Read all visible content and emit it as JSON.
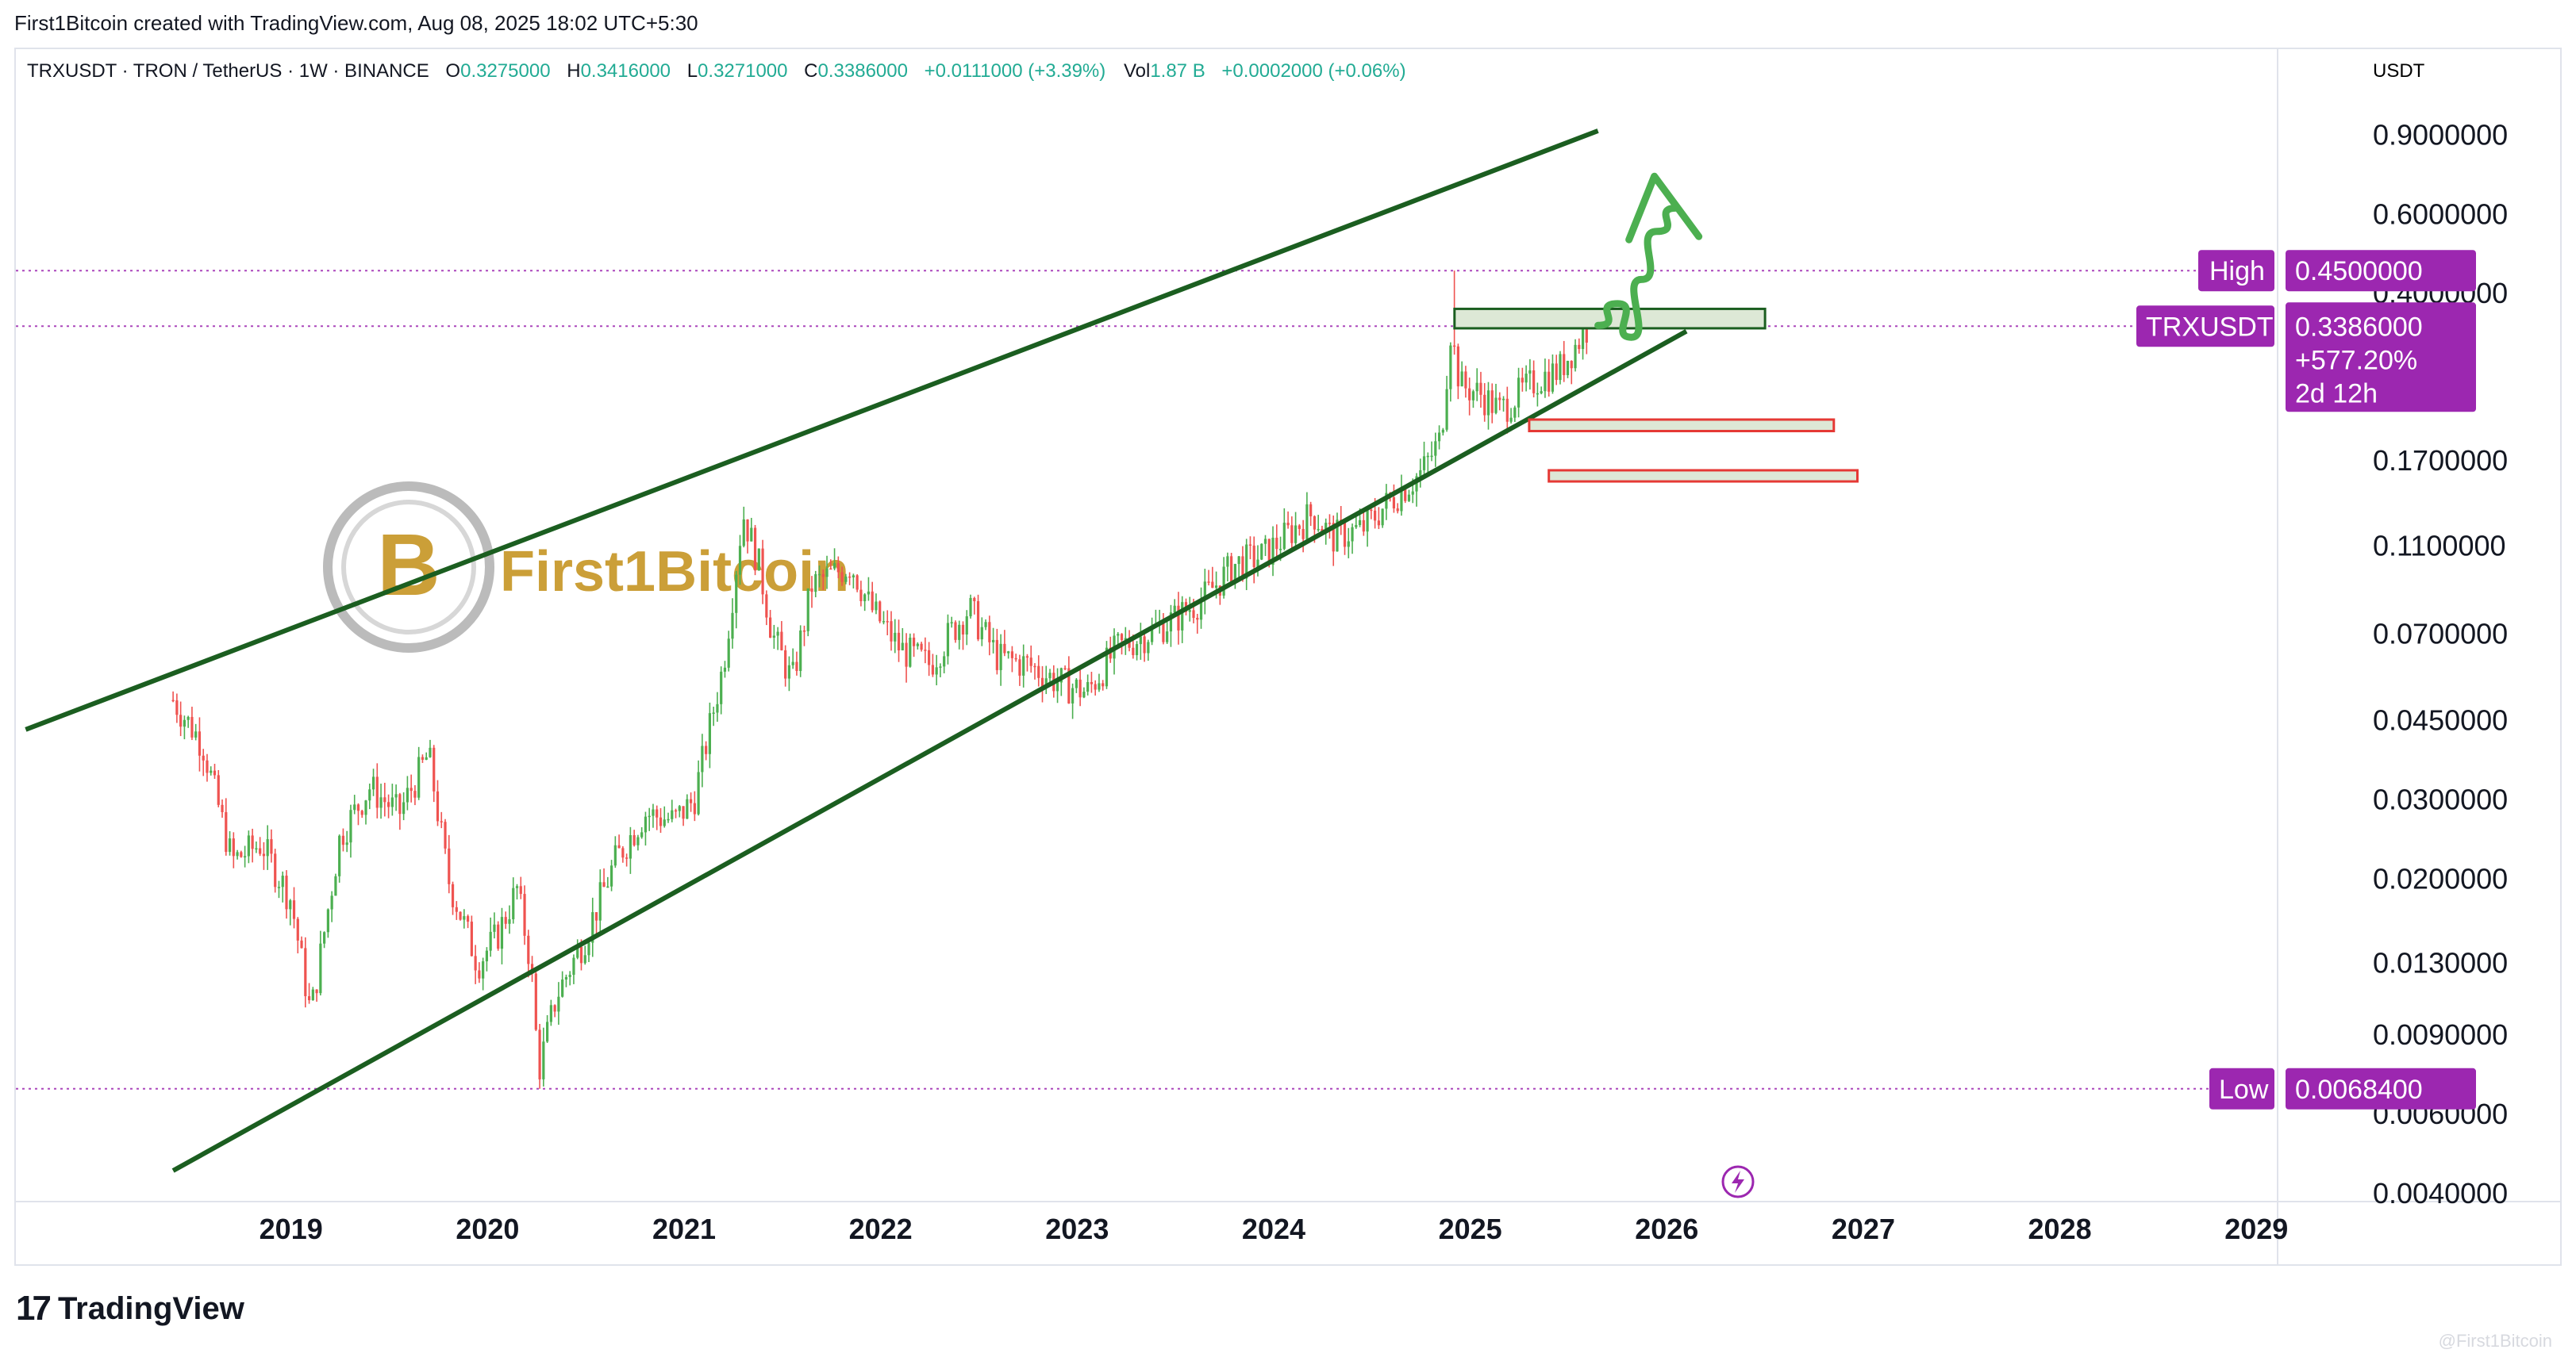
{
  "caption": "First1Bitcoin created with TradingView.com, Aug 08, 2025 18:02 UTC+5:30",
  "header": {
    "symbol": "TRXUSDT · TRON / TetherUS · 1W · BINANCE",
    "o_label": "O",
    "o_value": "0.3275000",
    "h_label": "H",
    "h_value": "0.3416000",
    "l_label": "L",
    "l_value": "0.3271000",
    "c_label": "C",
    "c_value": "0.3386000",
    "change": "+0.0111000 (+3.39%)",
    "vol_label": "Vol",
    "vol_value": "1.87 B",
    "vol_change": "+0.0002000 (+0.06%)"
  },
  "watermark": {
    "text": "First1Bitcoin",
    "small": "@First1Bitcoin"
  },
  "tradingview_logo": {
    "mark": "17",
    "name": "TradingView"
  },
  "price_axis": {
    "currency": "USDT",
    "high_tag": {
      "label": "High",
      "value": "0.4500000"
    },
    "price_tag": {
      "label": "TRXUSDT",
      "value": "0.3386000",
      "change": "+577.20%",
      "countdown": "2d 12h"
    },
    "low_tag": {
      "label": "Low",
      "value": "0.0068400"
    }
  },
  "colors": {
    "up": "#4caf50",
    "down": "#ef5350",
    "channel": "#1b5e20",
    "tag": "#9c27b0",
    "zone_fill": "#dde8d6",
    "zone_border_green": "#1b5e20",
    "zone_border_red": "#e53935",
    "arrow": "#4caf50",
    "gold": "#c99a2e"
  },
  "chart_data": {
    "type": "candlestick",
    "symbol": "TRXUSDT",
    "timeframe": "1W",
    "scale": "log",
    "x_ticks": [
      "2019",
      "2020",
      "2021",
      "2022",
      "2023",
      "2024",
      "2025",
      "2026",
      "2027",
      "2028",
      "2029"
    ],
    "y_ticks": [
      "0.9000000",
      "0.6000000",
      "0.4000000",
      "0.1700000",
      "0.1100000",
      "0.0700000",
      "0.0450000",
      "0.0300000",
      "0.0200000",
      "0.0130000",
      "0.0090000",
      "0.0060000",
      "0.0040000"
    ],
    "ylim": [
      0.004,
      1.15
    ],
    "xlim": [
      2017.6,
      2029.1
    ],
    "price_path": [
      [
        2018.4,
        0.05
      ],
      [
        2018.55,
        0.04
      ],
      [
        2018.7,
        0.022
      ],
      [
        2018.85,
        0.024
      ],
      [
        2019.0,
        0.018
      ],
      [
        2019.1,
        0.01
      ],
      [
        2019.25,
        0.025
      ],
      [
        2019.4,
        0.032
      ],
      [
        2019.55,
        0.028
      ],
      [
        2019.7,
        0.038
      ],
      [
        2019.8,
        0.02
      ],
      [
        2019.95,
        0.013
      ],
      [
        2020.05,
        0.015
      ],
      [
        2020.15,
        0.019
      ],
      [
        2020.22,
        0.013
      ],
      [
        2020.26,
        0.0075
      ],
      [
        2020.35,
        0.011
      ],
      [
        2020.5,
        0.015
      ],
      [
        2020.65,
        0.022
      ],
      [
        2020.8,
        0.028
      ],
      [
        2020.95,
        0.027
      ],
      [
        2021.05,
        0.03
      ],
      [
        2021.2,
        0.06
      ],
      [
        2021.3,
        0.13
      ],
      [
        2021.38,
        0.1
      ],
      [
        2021.45,
        0.07
      ],
      [
        2021.55,
        0.055
      ],
      [
        2021.65,
        0.09
      ],
      [
        2021.75,
        0.095
      ],
      [
        2021.85,
        0.1
      ],
      [
        2021.95,
        0.08
      ],
      [
        2022.1,
        0.065
      ],
      [
        2022.25,
        0.06
      ],
      [
        2022.35,
        0.07
      ],
      [
        2022.45,
        0.08
      ],
      [
        2022.6,
        0.062
      ],
      [
        2022.75,
        0.06
      ],
      [
        2022.9,
        0.055
      ],
      [
        2023.05,
        0.052
      ],
      [
        2023.2,
        0.065
      ],
      [
        2023.35,
        0.07
      ],
      [
        2023.5,
        0.076
      ],
      [
        2023.65,
        0.085
      ],
      [
        2023.8,
        0.1
      ],
      [
        2023.95,
        0.105
      ],
      [
        2024.1,
        0.12
      ],
      [
        2024.2,
        0.13
      ],
      [
        2024.3,
        0.115
      ],
      [
        2024.45,
        0.12
      ],
      [
        2024.6,
        0.14
      ],
      [
        2024.75,
        0.16
      ],
      [
        2024.85,
        0.19
      ],
      [
        2024.9,
        0.33
      ],
      [
        2024.95,
        0.25
      ],
      [
        2025.05,
        0.24
      ],
      [
        2025.15,
        0.22
      ],
      [
        2025.25,
        0.24
      ],
      [
        2025.35,
        0.26
      ],
      [
        2025.45,
        0.27
      ],
      [
        2025.52,
        0.3
      ],
      [
        2025.6,
        0.3386
      ]
    ],
    "high": 0.45,
    "low": 0.00684,
    "last": 0.3386,
    "channel": {
      "upper": [
        [
          2017.65,
          0.043
        ],
        [
          2025.65,
          0.92
        ]
      ],
      "lower": [
        [
          2018.4,
          0.0045
        ],
        [
          2026.1,
          0.33
        ]
      ]
    },
    "zones": [
      {
        "from": 2024.92,
        "to": 2026.5,
        "top": 0.37,
        "bottom": 0.335,
        "border": "green"
      },
      {
        "from": 2025.3,
        "to": 2026.85,
        "top": 0.21,
        "bottom": 0.198,
        "border": "red"
      },
      {
        "from": 2025.4,
        "to": 2026.97,
        "top": 0.162,
        "bottom": 0.153,
        "border": "red"
      }
    ],
    "projection_arrow": [
      [
        2025.65,
        0.34
      ],
      [
        2025.75,
        0.38
      ],
      [
        2025.82,
        0.32
      ],
      [
        2025.87,
        0.43
      ],
      [
        2025.95,
        0.55
      ],
      [
        2026.05,
        0.62
      ]
    ]
  }
}
